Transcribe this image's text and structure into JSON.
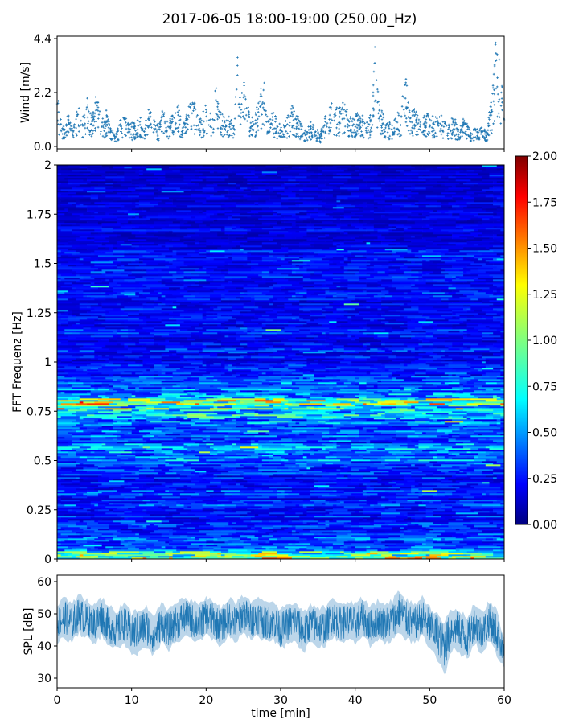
{
  "title": "2017-06-05 18:00-19:00 (250.00_Hz)",
  "chart_data": [
    {
      "type": "scatter",
      "panel": "wind",
      "ylabel": "Wind [m/s]",
      "xlabel": "",
      "xlim": [
        0,
        60
      ],
      "ylim": [
        -0.1,
        4.5
      ],
      "yticks": [
        0.0,
        2.2,
        4.4
      ],
      "ytick_labels": [
        "0.0",
        "2.2",
        "4.4"
      ],
      "xticks": [
        0,
        10,
        20,
        30,
        40,
        50,
        60
      ],
      "color": "#1f77b4",
      "marker": "+",
      "series": [
        {
          "x": [
            0.2,
            0.8,
            1.5,
            2.1,
            2.8,
            3.4,
            4.0,
            4.7,
            5.3,
            6.0,
            6.6,
            7.2,
            7.9,
            8.5,
            9.1,
            9.8,
            10.4,
            11.1,
            11.7,
            12.3,
            13.0,
            13.6,
            14.3,
            14.9,
            15.5,
            16.2,
            16.8,
            17.5,
            18.1,
            18.7,
            19.4,
            20.0,
            20.6,
            21.3,
            21.9,
            22.6,
            23.2,
            23.8,
            24.2,
            24.5,
            25.1,
            25.7,
            26.4,
            27.0,
            27.7,
            28.3,
            28.9,
            29.6,
            30.2,
            30.9,
            31.5,
            32.1,
            32.8,
            33.4,
            34.0,
            34.7,
            35.3,
            36.0,
            36.6,
            37.2,
            37.9,
            38.5,
            39.2,
            39.8,
            40.4,
            41.1,
            41.7,
            42.3,
            42.6,
            43.0,
            43.6,
            44.2,
            44.9,
            45.5,
            46.2,
            46.8,
            47.4,
            48.1,
            48.7,
            49.4,
            50.0,
            50.6,
            51.3,
            51.9,
            52.5,
            53.2,
            53.8,
            54.5,
            55.1,
            55.7,
            56.4,
            57.0,
            57.7,
            58.0,
            58.3,
            58.9,
            59.6
          ],
          "y": [
            1.4,
            0.7,
            1.1,
            0.5,
            1.3,
            0.9,
            1.6,
            1.0,
            1.8,
            0.8,
            1.2,
            0.6,
            0.4,
            0.9,
            1.1,
            0.7,
            0.8,
            1.0,
            0.6,
            1.2,
            0.9,
            0.7,
            1.3,
            0.8,
            1.0,
            1.4,
            0.6,
            1.1,
            1.7,
            1.2,
            0.9,
            1.5,
            1.1,
            1.9,
            1.3,
            0.8,
            1.0,
            0.7,
            3.3,
            1.6,
            2.1,
            1.2,
            0.9,
            1.4,
            2.3,
            1.0,
            1.2,
            0.8,
            0.6,
            0.9,
            1.4,
            1.1,
            0.7,
            0.5,
            0.8,
            0.6,
            0.4,
            1.0,
            1.6,
            1.3,
            1.2,
            1.5,
            1.0,
            0.9,
            1.1,
            1.0,
            0.8,
            1.2,
            3.4,
            1.8,
            1.1,
            0.9,
            0.7,
            1.0,
            1.2,
            2.6,
            1.0,
            1.3,
            0.8,
            1.0,
            1.1,
            0.9,
            1.2,
            0.8,
            0.7,
            1.0,
            0.6,
            0.9,
            0.7,
            0.5,
            0.7,
            0.6,
            0.5,
            1.1,
            1.5,
            3.8,
            2.2
          ]
        }
      ]
    },
    {
      "type": "heatmap",
      "panel": "spectrogram",
      "ylabel": "FFT Frequenz [Hz]",
      "xlabel": "",
      "xlim": [
        0,
        60
      ],
      "ylim": [
        0,
        2
      ],
      "yticks": [
        0,
        0.25,
        0.5,
        0.75,
        1,
        1.25,
        1.5,
        1.75,
        2
      ],
      "ytick_labels": [
        "0",
        "0.25",
        "0.5",
        "0.75",
        "1",
        "1.25",
        "1.5",
        "1.75",
        "2"
      ],
      "colormap": "jet",
      "colorbar": {
        "range": [
          0.0,
          2.0
        ],
        "ticks": [
          0.0,
          0.25,
          0.5,
          0.75,
          1.0,
          1.25,
          1.5,
          1.75,
          2.0
        ],
        "tick_labels": [
          "0.00",
          "0.25",
          "0.50",
          "0.75",
          "1.00",
          "1.25",
          "1.50",
          "1.75",
          "2.00"
        ]
      },
      "time_bins": 60,
      "freq_bins": [
        0.0,
        0.02,
        0.04,
        0.06,
        0.08,
        0.1,
        0.15,
        0.2,
        0.25,
        0.27,
        0.3,
        0.35,
        0.4,
        0.45,
        0.5,
        0.53,
        0.55,
        0.6,
        0.65,
        0.7,
        0.72,
        0.75,
        0.78,
        0.8,
        0.82,
        0.85,
        0.9,
        0.95,
        1.0,
        1.05,
        1.1,
        1.15,
        1.2,
        1.25,
        1.3,
        1.35,
        1.4,
        1.45,
        1.5,
        1.55,
        1.6,
        1.65,
        1.7,
        1.75,
        1.8,
        1.85,
        1.9,
        1.95,
        2.0
      ],
      "freq_profile": [
        1.2,
        1.0,
        0.8,
        0.45,
        0.35,
        0.5,
        0.35,
        0.3,
        0.32,
        0.55,
        0.3,
        0.35,
        0.32,
        0.38,
        0.55,
        0.45,
        0.7,
        0.4,
        0.45,
        0.55,
        0.62,
        0.65,
        0.9,
        1.0,
        0.75,
        0.5,
        0.42,
        0.35,
        0.28,
        0.3,
        0.28,
        0.3,
        0.28,
        0.3,
        0.25,
        0.3,
        0.25,
        0.28,
        0.26,
        0.28,
        0.25,
        0.22,
        0.2,
        0.22,
        0.2,
        0.18,
        0.2,
        0.17,
        0.15
      ]
    },
    {
      "type": "line",
      "panel": "spl",
      "ylabel": "SPL [dB]",
      "xlabel": "time [min]",
      "xlim": [
        0,
        60
      ],
      "ylim": [
        27,
        62
      ],
      "yticks": [
        30,
        40,
        50,
        60
      ],
      "ytick_labels": [
        "30",
        "40",
        "50",
        "60"
      ],
      "xticks": [
        0,
        10,
        20,
        30,
        40,
        50,
        60
      ],
      "xtick_labels": [
        "0",
        "10",
        "20",
        "30",
        "40",
        "50",
        "60"
      ],
      "color": "#1f77b4",
      "series": [
        {
          "x": [
            0,
            1,
            2,
            3,
            4,
            5,
            6,
            7,
            8,
            9,
            10,
            11,
            12,
            13,
            14,
            15,
            16,
            17,
            18,
            19,
            20,
            21,
            22,
            23,
            24,
            25,
            26,
            27,
            28,
            29,
            30,
            31,
            32,
            33,
            34,
            35,
            36,
            37,
            38,
            39,
            40,
            41,
            42,
            43,
            44,
            45,
            46,
            47,
            48,
            49,
            50,
            51,
            52,
            53,
            54,
            55,
            56,
            57,
            58,
            59,
            60
          ],
          "y_mean": [
            47,
            49,
            47,
            50,
            48,
            47,
            49,
            46,
            45,
            47,
            44,
            45,
            46,
            43,
            47,
            45,
            47,
            49,
            48,
            47,
            49,
            48,
            46,
            49,
            47,
            50,
            48,
            49,
            47,
            48,
            45,
            47,
            48,
            44,
            47,
            46,
            46,
            49,
            47,
            48,
            47,
            49,
            46,
            48,
            47,
            48,
            51,
            48,
            47,
            49,
            46,
            44,
            40,
            46,
            45,
            42,
            47,
            44,
            48,
            44,
            38
          ],
          "y_min": [
            40,
            42,
            40,
            43,
            42,
            40,
            42,
            39,
            38,
            40,
            36,
            37,
            38,
            36,
            40,
            38,
            40,
            42,
            41,
            40,
            42,
            41,
            39,
            42,
            40,
            43,
            41,
            42,
            40,
            41,
            38,
            40,
            41,
            37,
            40,
            39,
            39,
            42,
            40,
            41,
            40,
            42,
            39,
            41,
            40,
            41,
            43,
            41,
            40,
            42,
            38,
            35,
            30,
            38,
            37,
            35,
            40,
            37,
            41,
            36,
            33
          ],
          "y_max": [
            53,
            56,
            54,
            57,
            55,
            54,
            56,
            53,
            52,
            54,
            51,
            52,
            53,
            50,
            54,
            52,
            54,
            56,
            55,
            54,
            56,
            55,
            53,
            56,
            54,
            57,
            55,
            56,
            54,
            55,
            52,
            54,
            55,
            51,
            54,
            53,
            53,
            56,
            54,
            55,
            54,
            56,
            53,
            55,
            54,
            55,
            58,
            55,
            54,
            56,
            53,
            51,
            48,
            53,
            52,
            50,
            54,
            51,
            55,
            52,
            43
          ]
        }
      ]
    }
  ]
}
